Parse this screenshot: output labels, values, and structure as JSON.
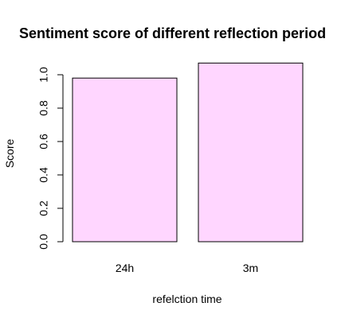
{
  "chart_data": {
    "type": "bar",
    "title": "Sentiment score of different reflection period",
    "xlabel": "refelction time",
    "ylabel": "Score",
    "categories": [
      "24h",
      "3m"
    ],
    "values": [
      0.98,
      1.07
    ],
    "ylim": [
      0,
      1.0
    ],
    "yticks": [
      "0.0",
      "0.2",
      "0.4",
      "0.6",
      "0.8",
      "1.0"
    ],
    "grid": false,
    "bar_fill": "#FFD6FF",
    "bar_stroke": "#000000"
  }
}
